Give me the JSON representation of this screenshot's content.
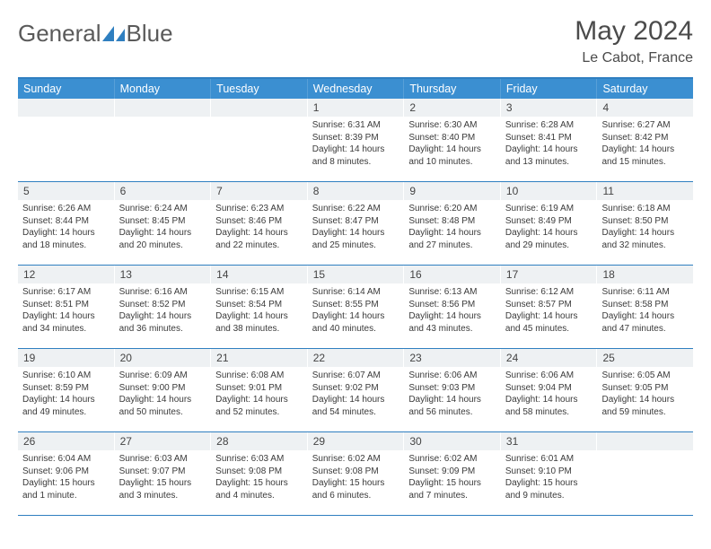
{
  "brand": {
    "name_part1": "General",
    "name_part2": "Blue"
  },
  "header": {
    "title": "May 2024",
    "location": "Le Cabot, France"
  },
  "colors": {
    "accent": "#3b8fd1",
    "accent_border": "#2f7fc0",
    "daynum_bg": "#eef1f3",
    "text": "#3a3a3a",
    "header_text": "#4b4b4b",
    "logo_gray": "#5a5a5a"
  },
  "days_of_week": [
    "Sunday",
    "Monday",
    "Tuesday",
    "Wednesday",
    "Thursday",
    "Friday",
    "Saturday"
  ],
  "weeks": [
    [
      null,
      null,
      null,
      {
        "n": "1",
        "sr": "6:31 AM",
        "ss": "8:39 PM",
        "dl": "14 hours and 8 minutes."
      },
      {
        "n": "2",
        "sr": "6:30 AM",
        "ss": "8:40 PM",
        "dl": "14 hours and 10 minutes."
      },
      {
        "n": "3",
        "sr": "6:28 AM",
        "ss": "8:41 PM",
        "dl": "14 hours and 13 minutes."
      },
      {
        "n": "4",
        "sr": "6:27 AM",
        "ss": "8:42 PM",
        "dl": "14 hours and 15 minutes."
      }
    ],
    [
      {
        "n": "5",
        "sr": "6:26 AM",
        "ss": "8:44 PM",
        "dl": "14 hours and 18 minutes."
      },
      {
        "n": "6",
        "sr": "6:24 AM",
        "ss": "8:45 PM",
        "dl": "14 hours and 20 minutes."
      },
      {
        "n": "7",
        "sr": "6:23 AM",
        "ss": "8:46 PM",
        "dl": "14 hours and 22 minutes."
      },
      {
        "n": "8",
        "sr": "6:22 AM",
        "ss": "8:47 PM",
        "dl": "14 hours and 25 minutes."
      },
      {
        "n": "9",
        "sr": "6:20 AM",
        "ss": "8:48 PM",
        "dl": "14 hours and 27 minutes."
      },
      {
        "n": "10",
        "sr": "6:19 AM",
        "ss": "8:49 PM",
        "dl": "14 hours and 29 minutes."
      },
      {
        "n": "11",
        "sr": "6:18 AM",
        "ss": "8:50 PM",
        "dl": "14 hours and 32 minutes."
      }
    ],
    [
      {
        "n": "12",
        "sr": "6:17 AM",
        "ss": "8:51 PM",
        "dl": "14 hours and 34 minutes."
      },
      {
        "n": "13",
        "sr": "6:16 AM",
        "ss": "8:52 PM",
        "dl": "14 hours and 36 minutes."
      },
      {
        "n": "14",
        "sr": "6:15 AM",
        "ss": "8:54 PM",
        "dl": "14 hours and 38 minutes."
      },
      {
        "n": "15",
        "sr": "6:14 AM",
        "ss": "8:55 PM",
        "dl": "14 hours and 40 minutes."
      },
      {
        "n": "16",
        "sr": "6:13 AM",
        "ss": "8:56 PM",
        "dl": "14 hours and 43 minutes."
      },
      {
        "n": "17",
        "sr": "6:12 AM",
        "ss": "8:57 PM",
        "dl": "14 hours and 45 minutes."
      },
      {
        "n": "18",
        "sr": "6:11 AM",
        "ss": "8:58 PM",
        "dl": "14 hours and 47 minutes."
      }
    ],
    [
      {
        "n": "19",
        "sr": "6:10 AM",
        "ss": "8:59 PM",
        "dl": "14 hours and 49 minutes."
      },
      {
        "n": "20",
        "sr": "6:09 AM",
        "ss": "9:00 PM",
        "dl": "14 hours and 50 minutes."
      },
      {
        "n": "21",
        "sr": "6:08 AM",
        "ss": "9:01 PM",
        "dl": "14 hours and 52 minutes."
      },
      {
        "n": "22",
        "sr": "6:07 AM",
        "ss": "9:02 PM",
        "dl": "14 hours and 54 minutes."
      },
      {
        "n": "23",
        "sr": "6:06 AM",
        "ss": "9:03 PM",
        "dl": "14 hours and 56 minutes."
      },
      {
        "n": "24",
        "sr": "6:06 AM",
        "ss": "9:04 PM",
        "dl": "14 hours and 58 minutes."
      },
      {
        "n": "25",
        "sr": "6:05 AM",
        "ss": "9:05 PM",
        "dl": "14 hours and 59 minutes."
      }
    ],
    [
      {
        "n": "26",
        "sr": "6:04 AM",
        "ss": "9:06 PM",
        "dl": "15 hours and 1 minute."
      },
      {
        "n": "27",
        "sr": "6:03 AM",
        "ss": "9:07 PM",
        "dl": "15 hours and 3 minutes."
      },
      {
        "n": "28",
        "sr": "6:03 AM",
        "ss": "9:08 PM",
        "dl": "15 hours and 4 minutes."
      },
      {
        "n": "29",
        "sr": "6:02 AM",
        "ss": "9:08 PM",
        "dl": "15 hours and 6 minutes."
      },
      {
        "n": "30",
        "sr": "6:02 AM",
        "ss": "9:09 PM",
        "dl": "15 hours and 7 minutes."
      },
      {
        "n": "31",
        "sr": "6:01 AM",
        "ss": "9:10 PM",
        "dl": "15 hours and 9 minutes."
      },
      null
    ]
  ],
  "labels": {
    "sunrise": "Sunrise: ",
    "sunset": "Sunset: ",
    "daylight": "Daylight: "
  }
}
